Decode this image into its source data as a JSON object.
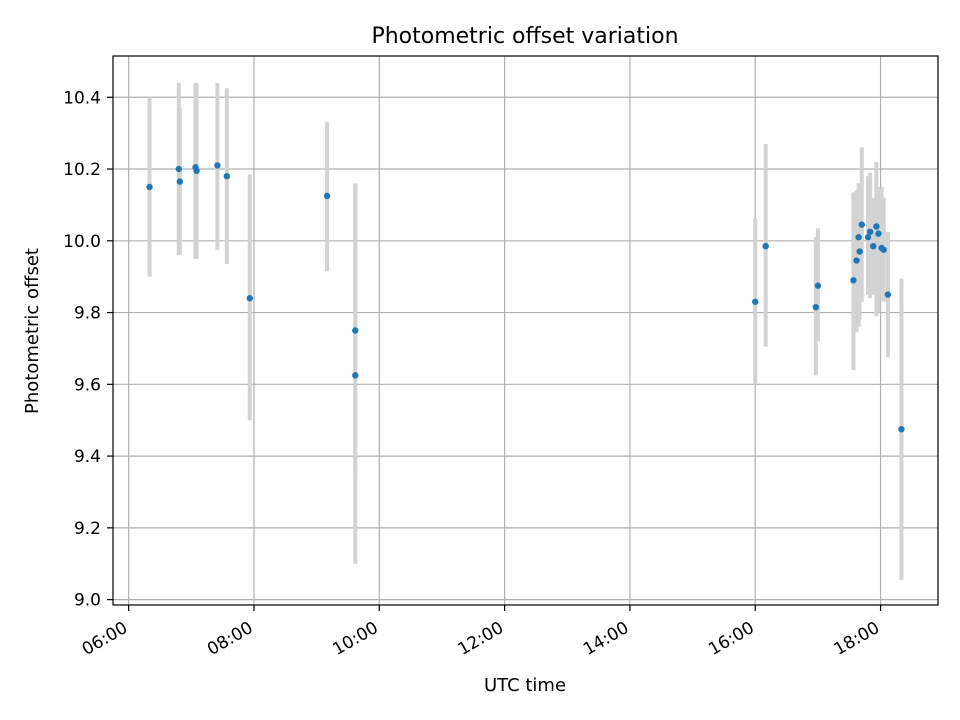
{
  "chart_data": {
    "type": "scatter",
    "title": "Photometric offset variation",
    "xlabel": "UTC time",
    "ylabel": "Photometric offset",
    "x_is_time": true,
    "xlim": [
      "05:45",
      "18:55"
    ],
    "ylim": [
      8.985,
      10.515
    ],
    "x_ticks": [
      "06:00",
      "08:00",
      "10:00",
      "12:00",
      "14:00",
      "16:00",
      "18:00"
    ],
    "y_ticks": [
      "9.0",
      "9.2",
      "9.4",
      "9.6",
      "9.8",
      "10.0",
      "10.2",
      "10.4"
    ],
    "grid": true,
    "colors": {
      "points": "#1f77b4",
      "error_bars": "#d3d3d3",
      "grid": "#b0b0b0"
    },
    "points": [
      {
        "x": "06:20",
        "y": 10.15,
        "ylow": 9.9,
        "yhigh": 10.4
      },
      {
        "x": "06:48",
        "y": 10.2,
        "ylow": 9.96,
        "yhigh": 10.44
      },
      {
        "x": "06:49",
        "y": 10.165,
        "ylow": 9.96,
        "yhigh": 10.37
      },
      {
        "x": "07:04",
        "y": 10.205,
        "ylow": 9.95,
        "yhigh": 10.44
      },
      {
        "x": "07:05",
        "y": 10.195,
        "ylow": 9.95,
        "yhigh": 10.44
      },
      {
        "x": "07:25",
        "y": 10.21,
        "ylow": 9.975,
        "yhigh": 10.44
      },
      {
        "x": "07:34",
        "y": 10.18,
        "ylow": 9.935,
        "yhigh": 10.425
      },
      {
        "x": "07:56",
        "y": 9.84,
        "ylow": 9.5,
        "yhigh": 10.185
      },
      {
        "x": "09:10",
        "y": 10.125,
        "ylow": 9.915,
        "yhigh": 10.33
      },
      {
        "x": "09:37",
        "y": 9.75,
        "ylow": 9.34,
        "yhigh": 10.16
      },
      {
        "x": "09:37",
        "y": 9.625,
        "ylow": 9.1,
        "yhigh": 10.155
      },
      {
        "x": "16:00",
        "y": 9.83,
        "ylow": 9.6,
        "yhigh": 10.065
      },
      {
        "x": "16:10",
        "y": 9.985,
        "ylow": 9.705,
        "yhigh": 10.27
      },
      {
        "x": "16:58",
        "y": 9.815,
        "ylow": 9.625,
        "yhigh": 10.01
      },
      {
        "x": "17:00",
        "y": 9.875,
        "ylow": 9.72,
        "yhigh": 10.035
      },
      {
        "x": "17:34",
        "y": 9.89,
        "ylow": 9.64,
        "yhigh": 10.135
      },
      {
        "x": "17:37",
        "y": 9.945,
        "ylow": 9.745,
        "yhigh": 10.14
      },
      {
        "x": "17:39",
        "y": 10.01,
        "ylow": 9.76,
        "yhigh": 10.16
      },
      {
        "x": "17:40",
        "y": 9.97,
        "ylow": 9.78,
        "yhigh": 10.16
      },
      {
        "x": "17:42",
        "y": 10.045,
        "ylow": 9.83,
        "yhigh": 10.26
      },
      {
        "x": "17:48",
        "y": 10.01,
        "ylow": 9.85,
        "yhigh": 10.18
      },
      {
        "x": "17:50",
        "y": 10.025,
        "ylow": 9.84,
        "yhigh": 10.19
      },
      {
        "x": "17:53",
        "y": 9.985,
        "ylow": 9.85,
        "yhigh": 10.12
      },
      {
        "x": "17:56",
        "y": 10.04,
        "ylow": 9.79,
        "yhigh": 10.22
      },
      {
        "x": "17:58",
        "y": 10.02,
        "ylow": 9.8,
        "yhigh": 10.15
      },
      {
        "x": "18:01",
        "y": 9.98,
        "ylow": 9.85,
        "yhigh": 10.15
      },
      {
        "x": "18:03",
        "y": 9.975,
        "ylow": 9.83,
        "yhigh": 10.12
      },
      {
        "x": "18:07",
        "y": 9.85,
        "ylow": 9.675,
        "yhigh": 10.025
      },
      {
        "x": "18:20",
        "y": 9.475,
        "ylow": 9.055,
        "yhigh": 9.895
      }
    ]
  }
}
